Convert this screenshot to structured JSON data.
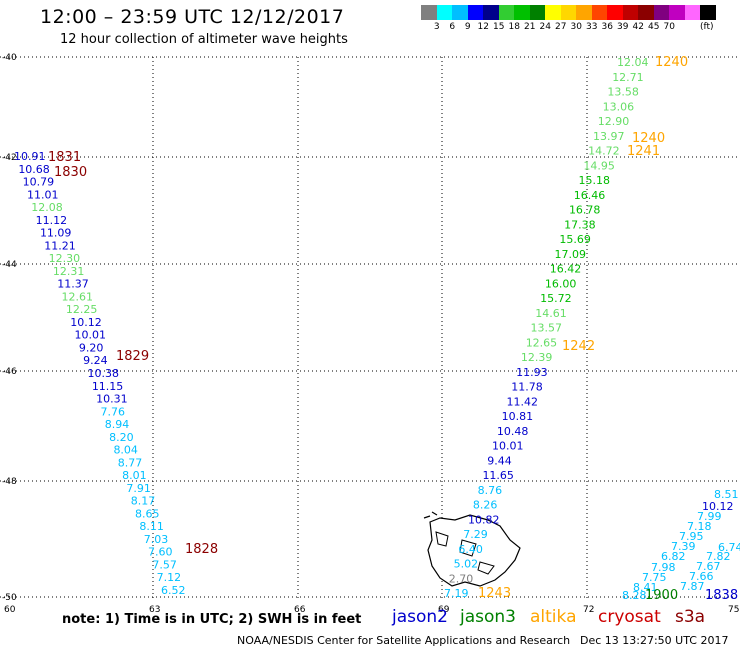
{
  "header": {
    "title": "12:00 – 23:59 UTC 12/12/2017",
    "subtitle": "12 hour collection of altimeter wave heights"
  },
  "legend": {
    "colors": [
      "#808080",
      "#00ffff",
      "#00bfff",
      "#0000ff",
      "#00008b",
      "#32cd32",
      "#00c000",
      "#008000",
      "#ffff00",
      "#ffd700",
      "#ffa500",
      "#ff4500",
      "#ff0000",
      "#c00000",
      "#8b0000",
      "#800080",
      "#c000c0",
      "#ff66ff",
      "#000000"
    ],
    "labels": [
      "3",
      "6",
      "9",
      "12",
      "15",
      "18",
      "21",
      "24",
      "27",
      "30",
      "33",
      "36",
      "39",
      "42",
      "45",
      "70"
    ],
    "unit": "(ft)"
  },
  "axes": {
    "lat_labels": [
      "-40",
      "-42",
      "-44",
      "-46",
      "-48",
      "-50"
    ],
    "lon_labels": [
      "60",
      "63",
      "66",
      "69",
      "72",
      "75"
    ]
  },
  "tracks": [
    {
      "id": "left",
      "values": [
        "10.91",
        "10.68",
        "10.79",
        "11.01",
        "12.08",
        "11.12",
        "11.09",
        "11.21",
        "12.30",
        "12.31",
        "11.37",
        "12.61",
        "12.25",
        "10.12",
        "10.01",
        "9.20",
        "9.24",
        "10.38",
        "11.15",
        "10.31",
        "7.76",
        "8.94",
        "8.20",
        "8.04",
        "8.77",
        "8.01",
        "7.91",
        "8.17",
        "8.65",
        "8.11",
        "7.03",
        "7.60",
        "7.57",
        "7.12",
        "6.52"
      ]
    },
    {
      "id": "middle",
      "values": [
        "12.04",
        "12.71",
        "13.58",
        "13.06",
        "12.90",
        "13.97",
        "14.72",
        "14.95",
        "15.18",
        "16.46",
        "16.78",
        "17.38",
        "15.69",
        "17.09",
        "16.42",
        "16.00",
        "15.72",
        "14.61",
        "13.57",
        "12.65",
        "12.39",
        "11.93",
        "11.78",
        "11.42",
        "10.81",
        "10.48",
        "10.01",
        "9.44",
        "11.65",
        "8.76",
        "8.26",
        "10.82",
        "7.29",
        "6.40",
        "5.02",
        "2.70",
        "7.19"
      ]
    },
    {
      "id": "right",
      "values": [
        "8.51",
        "10.12",
        "7.99",
        "7.18",
        "7.95",
        "7.39",
        "6.82",
        "7.98",
        "7.75",
        "8.41",
        "8.28",
        "7.82",
        "7.67",
        "7.66",
        "7.87",
        "6.74"
      ]
    }
  ],
  "time_labels": [
    "1831",
    "1830",
    "1829",
    "1828",
    "1240",
    "1240",
    "1241",
    "1242",
    "1243",
    "1900",
    "1838"
  ],
  "footer": {
    "note": "note: 1) Time is in UTC; 2) SWH is in feet",
    "satellites": [
      {
        "name": "jason2",
        "color": "#0000cc"
      },
      {
        "name": "jason3",
        "color": "#008000"
      },
      {
        "name": "altika",
        "color": "#ffa500"
      },
      {
        "name": "cryosat",
        "color": "#cc0000"
      },
      {
        "name": "s3a",
        "color": "#8b0000"
      }
    ],
    "credit": "NOAA/NESDIS Center for Satellite Applications and Research",
    "timestamp": "Dec 13 13:27:50 UTC 2017"
  }
}
